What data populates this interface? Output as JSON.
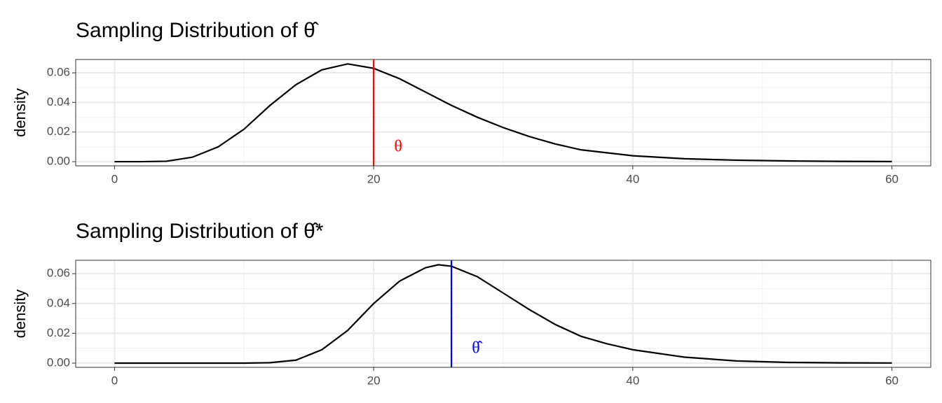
{
  "chart_data": [
    {
      "type": "line",
      "title": "Sampling Distribution of θ̂",
      "y_label": "density",
      "x": [
        0,
        2,
        4,
        6,
        8,
        10,
        12,
        14,
        16,
        18,
        20,
        22,
        24,
        26,
        28,
        30,
        32,
        34,
        36,
        38,
        40,
        44,
        48,
        52,
        56,
        60
      ],
      "values": [
        0,
        0,
        0.0003,
        0.003,
        0.01,
        0.022,
        0.038,
        0.052,
        0.062,
        0.066,
        0.063,
        0.056,
        0.047,
        0.038,
        0.03,
        0.023,
        0.017,
        0.012,
        0.008,
        0.006,
        0.004,
        0.002,
        0.001,
        0.0005,
        0.0002,
        0.0001
      ],
      "color": "#000000",
      "vline": {
        "value": 20,
        "color": "#ff0000",
        "label": "θ"
      },
      "xlim": [
        -3,
        63
      ],
      "xticks": [
        0,
        20,
        40,
        60
      ],
      "x_minor_grid": [
        10,
        30,
        50
      ],
      "ylim": [
        -0.0028,
        0.069
      ],
      "yticks": [
        {
          "value": 0,
          "label": "0.00"
        },
        {
          "value": 0.02,
          "label": "0.02"
        },
        {
          "value": 0.04,
          "label": "0.04"
        },
        {
          "value": 0.06,
          "label": "0.06"
        }
      ],
      "y_minor_grid": [
        0.01,
        0.03,
        0.05
      ],
      "grid": true
    },
    {
      "type": "line",
      "title": "Sampling Distribution of θ̂*",
      "y_label": "density",
      "x": [
        0,
        2,
        4,
        6,
        8,
        10,
        12,
        14,
        16,
        18,
        20,
        22,
        24,
        25,
        26,
        28,
        30,
        32,
        34,
        36,
        38,
        40,
        44,
        48,
        52,
        56,
        60
      ],
      "values": [
        0,
        0,
        0,
        0,
        0,
        0,
        0.0003,
        0.002,
        0.009,
        0.022,
        0.04,
        0.055,
        0.064,
        0.066,
        0.065,
        0.058,
        0.047,
        0.036,
        0.026,
        0.018,
        0.013,
        0.009,
        0.004,
        0.0015,
        0.0005,
        0.0002,
        0.0001
      ],
      "color": "#000000",
      "vline": {
        "value": 26,
        "color": "#0000ff",
        "label": "θ̂"
      },
      "xlim": [
        -3,
        63
      ],
      "xticks": [
        0,
        20,
        40,
        60
      ],
      "x_minor_grid": [
        10,
        30,
        50
      ],
      "ylim": [
        -0.0028,
        0.069
      ],
      "yticks": [
        {
          "value": 0,
          "label": "0.00"
        },
        {
          "value": 0.02,
          "label": "0.02"
        },
        {
          "value": 0.04,
          "label": "0.04"
        },
        {
          "value": 0.06,
          "label": "0.06"
        }
      ],
      "y_minor_grid": [
        0.01,
        0.03,
        0.05
      ],
      "grid": true
    }
  ]
}
